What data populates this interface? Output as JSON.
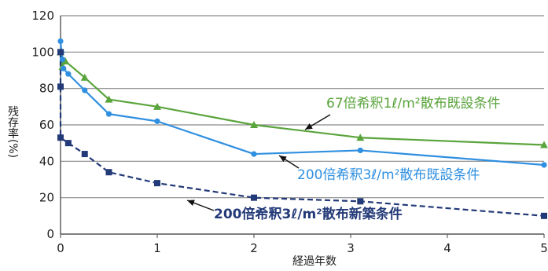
{
  "chart_data": {
    "type": "line",
    "xlabel": "経過年数",
    "ylabel": "残存率(%)",
    "xlim": [
      0,
      5
    ],
    "ylim": [
      0,
      120
    ],
    "x_ticks": [
      0,
      1,
      2,
      3,
      4,
      5
    ],
    "y_ticks": [
      0,
      20,
      40,
      60,
      80,
      100,
      120
    ],
    "grid": "horizontal",
    "colors": {
      "green": "#5aa43c",
      "blue": "#2f8fe0",
      "navy": "#233a78"
    },
    "series": [
      {
        "name": "67倍希釈1ℓ/m²散布既設条件",
        "color": "green",
        "dash": false,
        "marker": "triangle",
        "x": [
          0,
          0.02,
          0.05,
          0.25,
          0.5,
          1,
          2,
          3.1,
          5
        ],
        "y": [
          100,
          92,
          95,
          86,
          74,
          70,
          60,
          53,
          49
        ]
      },
      {
        "name": "200倍希釈3ℓ/m²散布既設条件",
        "color": "blue",
        "dash": false,
        "marker": "circle",
        "x": [
          0,
          0.01,
          0.02,
          0.03,
          0.08,
          0.25,
          0.5,
          1,
          2,
          3.1,
          5
        ],
        "y": [
          106,
          100,
          96,
          91,
          88,
          79,
          66,
          62,
          44,
          46,
          38
        ]
      },
      {
        "name": "200倍希釈3ℓ/m²散布新築条件",
        "color": "navy",
        "dash": true,
        "marker": "square",
        "x": [
          0,
          0,
          0,
          0.08,
          0.25,
          0.5,
          1,
          2,
          3.1,
          5
        ],
        "y": [
          100,
          81,
          53,
          50,
          44,
          34,
          28,
          20,
          18,
          10
        ]
      }
    ],
    "annotations": [
      {
        "series": 0,
        "text": "67倍希釈1ℓ/m²散布既設条件",
        "color": "green"
      },
      {
        "series": 1,
        "text": "200倍希釈3ℓ/m²散布既設条件",
        "color": "blue"
      },
      {
        "series": 2,
        "text": "200倍希釈3ℓ/m²散布新築条件",
        "color": "navy"
      }
    ]
  }
}
